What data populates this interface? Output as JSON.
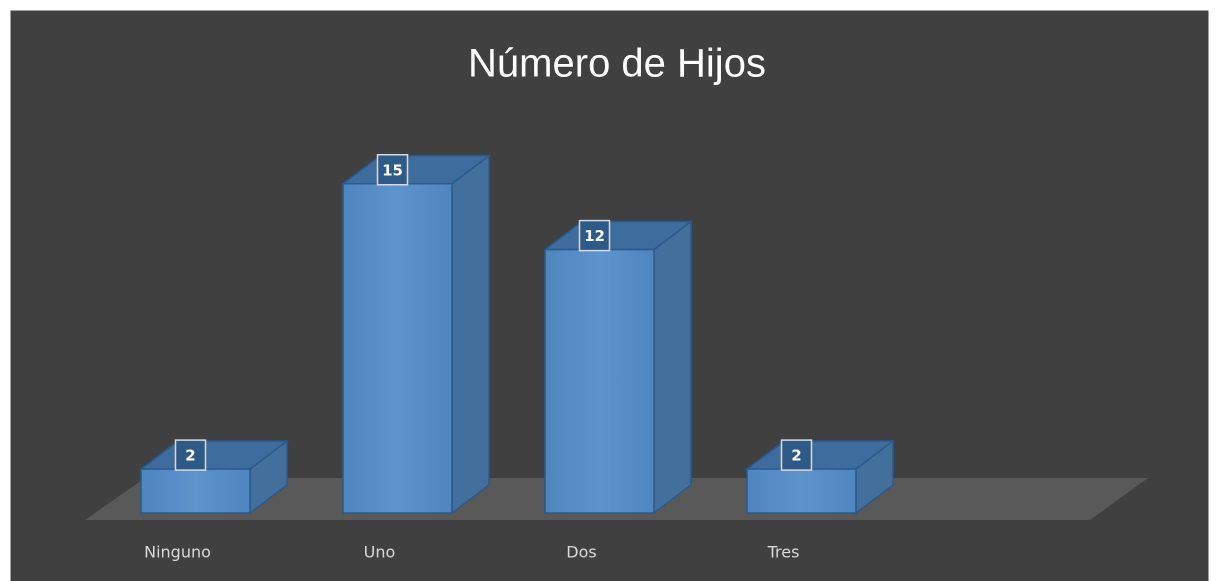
{
  "chart_data": {
    "type": "bar3d",
    "title": "Número de Hijos",
    "categories": [
      "Ninguno",
      "Uno",
      "Dos",
      "Tres"
    ],
    "values": [
      2,
      15,
      12,
      2
    ],
    "color": "#5b8fc7"
  }
}
